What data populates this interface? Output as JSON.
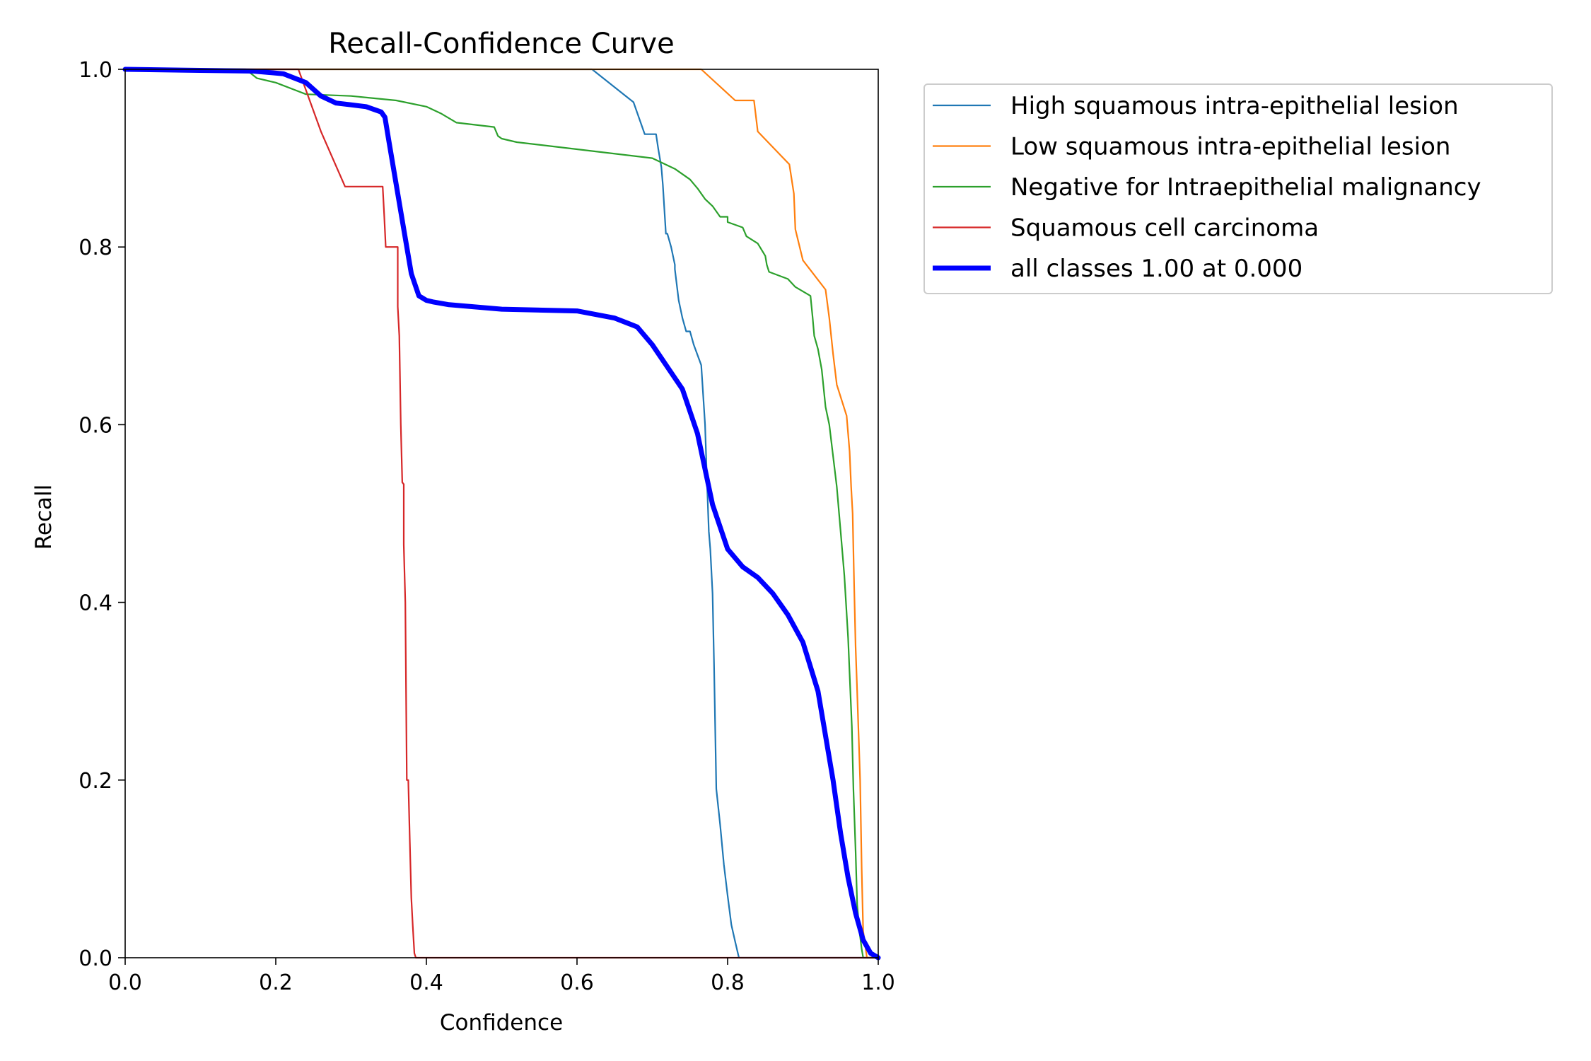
{
  "chart_data": {
    "type": "line",
    "title": "Recall-Confidence Curve",
    "xlabel": "Confidence",
    "ylabel": "Recall",
    "xlim": [
      0,
      1
    ],
    "ylim": [
      0,
      1
    ],
    "xticks": [
      "0.0",
      "0.2",
      "0.4",
      "0.6",
      "0.8",
      "1.0"
    ],
    "yticks": [
      "0.0",
      "0.2",
      "0.4",
      "0.6",
      "0.8",
      "1.0"
    ],
    "grid": false,
    "legend_placement": "outside-upper-right",
    "series": [
      {
        "name": "High squamous intra-epithelial lesion",
        "color": "#1f77b4",
        "width": "thin",
        "x": [
          0.0,
          0.62,
          0.675,
          0.69,
          0.705,
          0.708,
          0.712,
          0.714,
          0.718,
          0.72,
          0.725,
          0.73,
          0.73,
          0.735,
          0.74,
          0.745,
          0.75,
          0.755,
          0.765,
          0.77,
          0.772,
          0.775,
          0.777,
          0.78,
          0.782,
          0.785,
          0.79,
          0.795,
          0.8,
          0.805,
          0.81,
          0.815,
          0.82,
          1.0
        ],
        "y": [
          1.0,
          1.0,
          0.963,
          0.927,
          0.927,
          0.91,
          0.89,
          0.87,
          0.815,
          0.815,
          0.8,
          0.78,
          0.775,
          0.74,
          0.72,
          0.705,
          0.705,
          0.69,
          0.667,
          0.6,
          0.55,
          0.48,
          0.46,
          0.41,
          0.33,
          0.19,
          0.15,
          0.105,
          0.07,
          0.037,
          0.018,
          0.0,
          0.0,
          0.0
        ]
      },
      {
        "name": "Low squamous intra-epithelial lesion",
        "color": "#ff7f0e",
        "width": "thin",
        "x": [
          0.0,
          0.765,
          0.81,
          0.835,
          0.84,
          0.882,
          0.888,
          0.89,
          0.9,
          0.93,
          0.935,
          0.94,
          0.945,
          0.958,
          0.962,
          0.964,
          0.966,
          0.968,
          0.97,
          0.972,
          0.974,
          0.976,
          0.978,
          0.98,
          0.985,
          1.0
        ],
        "y": [
          1.0,
          1.0,
          0.965,
          0.965,
          0.93,
          0.893,
          0.86,
          0.82,
          0.785,
          0.752,
          0.72,
          0.68,
          0.645,
          0.61,
          0.57,
          0.53,
          0.5,
          0.42,
          0.35,
          0.3,
          0.25,
          0.2,
          0.1,
          0.03,
          0.0,
          0.0
        ]
      },
      {
        "name": "Negative for Intraepithelial malignancy",
        "color": "#2ca02c",
        "width": "thin",
        "x": [
          0.0,
          0.16,
          0.175,
          0.2,
          0.24,
          0.3,
          0.36,
          0.4,
          0.42,
          0.44,
          0.49,
          0.495,
          0.5,
          0.52,
          0.6,
          0.7,
          0.73,
          0.75,
          0.76,
          0.77,
          0.78,
          0.79,
          0.8,
          0.8,
          0.82,
          0.825,
          0.84,
          0.85,
          0.852,
          0.855,
          0.88,
          0.89,
          0.91,
          0.913,
          0.915,
          0.92,
          0.925,
          0.93,
          0.935,
          0.94,
          0.945,
          0.95,
          0.955,
          0.96,
          0.962,
          0.965,
          0.967,
          0.97,
          0.972,
          0.975,
          0.978,
          0.98,
          0.985,
          1.0
        ],
        "y": [
          1.0,
          1.0,
          0.99,
          0.985,
          0.972,
          0.97,
          0.965,
          0.958,
          0.95,
          0.94,
          0.935,
          0.925,
          0.922,
          0.918,
          0.91,
          0.9,
          0.888,
          0.876,
          0.866,
          0.854,
          0.846,
          0.834,
          0.834,
          0.828,
          0.822,
          0.812,
          0.804,
          0.79,
          0.78,
          0.772,
          0.764,
          0.755,
          0.745,
          0.72,
          0.7,
          0.685,
          0.662,
          0.62,
          0.6,
          0.565,
          0.53,
          0.48,
          0.43,
          0.36,
          0.32,
          0.26,
          0.19,
          0.12,
          0.06,
          0.03,
          0.01,
          0.0,
          0.0,
          0.0
        ]
      },
      {
        "name": "Squamous cell carcinoma",
        "color": "#d62728",
        "width": "thin",
        "x": [
          0.0,
          0.23,
          0.26,
          0.292,
          0.342,
          0.344,
          0.346,
          0.362,
          0.362,
          0.364,
          0.366,
          0.368,
          0.37,
          0.37,
          0.372,
          0.374,
          0.376,
          0.378,
          0.38,
          0.382,
          0.384,
          0.386,
          0.39,
          1.0
        ],
        "y": [
          1.0,
          1.0,
          0.93,
          0.868,
          0.868,
          0.835,
          0.8,
          0.8,
          0.733,
          0.7,
          0.6,
          0.535,
          0.533,
          0.465,
          0.4,
          0.2,
          0.2,
          0.13,
          0.067,
          0.035,
          0.005,
          0.0,
          0.0,
          0.0
        ]
      },
      {
        "name": "all classes 1.00 at 0.000",
        "color": "#0000ff",
        "width": "thick",
        "x": [
          0.0,
          0.17,
          0.21,
          0.24,
          0.26,
          0.28,
          0.3,
          0.32,
          0.34,
          0.345,
          0.35,
          0.36,
          0.37,
          0.38,
          0.39,
          0.4,
          0.41,
          0.43,
          0.5,
          0.6,
          0.65,
          0.68,
          0.7,
          0.72,
          0.74,
          0.76,
          0.78,
          0.8,
          0.82,
          0.84,
          0.86,
          0.88,
          0.9,
          0.92,
          0.94,
          0.95,
          0.96,
          0.97,
          0.98,
          0.99,
          1.0
        ],
        "y": [
          1.0,
          0.998,
          0.995,
          0.985,
          0.97,
          0.962,
          0.96,
          0.958,
          0.952,
          0.946,
          0.92,
          0.87,
          0.82,
          0.77,
          0.745,
          0.74,
          0.738,
          0.735,
          0.73,
          0.728,
          0.72,
          0.71,
          0.69,
          0.665,
          0.64,
          0.59,
          0.51,
          0.46,
          0.44,
          0.428,
          0.41,
          0.386,
          0.355,
          0.3,
          0.2,
          0.14,
          0.09,
          0.05,
          0.02,
          0.005,
          0.0
        ]
      }
    ]
  }
}
